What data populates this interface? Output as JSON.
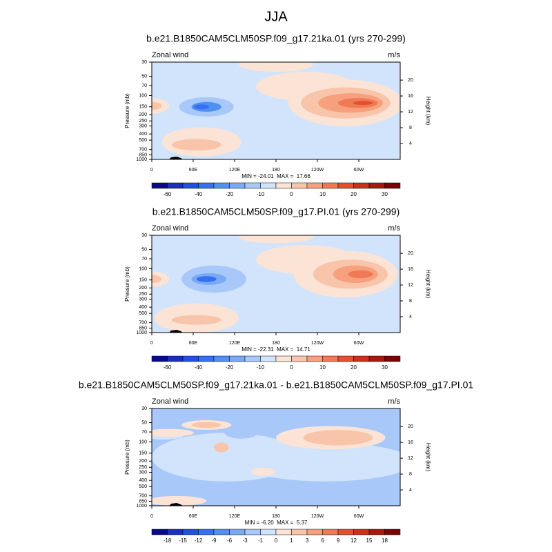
{
  "title": "JJA",
  "chart_data": [
    {
      "type": "contour",
      "subtitle": "b.e21.B1850CAM5CLM50SP.f09_g17.21ka.01 (yrs 270-299)",
      "left_label": "Zonal wind",
      "units": "m/s",
      "ylabel": "Pressure (mb)",
      "y2label": "Height (km)",
      "ylim": [
        1000,
        30
      ],
      "log_y": true,
      "yticks": [
        30,
        50,
        70,
        100,
        150,
        200,
        250,
        300,
        400,
        500,
        700,
        850,
        1000
      ],
      "y2ticks": [
        4,
        8,
        12,
        16,
        20
      ],
      "xlim": [
        0,
        360
      ],
      "xticks": [
        0,
        {
          "value": 60,
          "label": "60E"
        },
        {
          "value": 120,
          "label": "120E"
        },
        180,
        {
          "value": 240,
          "label": "120W"
        },
        {
          "value": 300,
          "label": "60W"
        }
      ],
      "stats": "MIN = -24.01  MAX =  17.66",
      "colorbar": {
        "levels": [
          -60,
          -40,
          -20,
          -10,
          0,
          10,
          20,
          30
        ],
        "colors": [
          "#0a0a8c",
          "#1a2fbf",
          "#2050e0",
          "#3470f0",
          "#5090f0",
          "#7aaaf5",
          "#a8c8fa",
          "#d2e4fb",
          "#fbe4d6",
          "#f9c5aa",
          "#f6a07e",
          "#f07a55",
          "#e4502e",
          "#cc3018",
          "#a8180c",
          "#7a0404"
        ]
      }
    },
    {
      "type": "contour",
      "subtitle": "b.e21.B1850CAM5CLM50SP.f09_g17.PI.01 (yrs 270-299)",
      "left_label": "Zonal wind",
      "units": "m/s",
      "ylabel": "Pressure (mb)",
      "y2label": "Height (km)",
      "ylim": [
        1000,
        30
      ],
      "log_y": true,
      "yticks": [
        30,
        50,
        70,
        100,
        150,
        200,
        250,
        300,
        400,
        500,
        700,
        850,
        1000
      ],
      "y2ticks": [
        4,
        8,
        12,
        16,
        20
      ],
      "xlim": [
        0,
        360
      ],
      "xticks": [
        0,
        {
          "value": 60,
          "label": "60E"
        },
        {
          "value": 120,
          "label": "120E"
        },
        180,
        {
          "value": 240,
          "label": "120W"
        },
        {
          "value": 300,
          "label": "60W"
        }
      ],
      "stats": "MIN = -22.31  MAX =  14.71",
      "colorbar": {
        "levels": [
          -60,
          -40,
          -20,
          -10,
          0,
          10,
          20,
          30
        ],
        "colors": [
          "#0a0a8c",
          "#1a2fbf",
          "#2050e0",
          "#3470f0",
          "#5090f0",
          "#7aaaf5",
          "#a8c8fa",
          "#d2e4fb",
          "#fbe4d6",
          "#f9c5aa",
          "#f6a07e",
          "#f07a55",
          "#e4502e",
          "#cc3018",
          "#a8180c",
          "#7a0404"
        ]
      }
    },
    {
      "type": "contour",
      "subtitle": "b.e21.B1850CAM5CLM50SP.f09_g17.21ka.01 - b.e21.B1850CAM5CLM50SP.f09_g17.PI.01",
      "left_label": "Zonal wind",
      "units": "m/s",
      "ylabel": "Pressure (mb)",
      "y2label": "Height (km)",
      "ylim": [
        1000,
        30
      ],
      "log_y": true,
      "yticks": [
        30,
        50,
        70,
        100,
        150,
        200,
        250,
        300,
        400,
        500,
        700,
        850,
        1000
      ],
      "y2ticks": [
        4,
        8,
        12,
        16,
        20
      ],
      "xlim": [
        0,
        360
      ],
      "xticks": [
        0,
        {
          "value": 60,
          "label": "60E"
        },
        {
          "value": 120,
          "label": "120E"
        },
        180,
        {
          "value": 240,
          "label": "120W"
        },
        {
          "value": 300,
          "label": "60W"
        }
      ],
      "stats": "MIN = -6.20  MAX =  5.37",
      "colorbar": {
        "levels": [
          -18,
          -15,
          -12,
          -9,
          -6,
          -3,
          -1,
          0,
          1,
          3,
          6,
          9,
          12,
          15,
          18
        ],
        "colors": [
          "#0a0a8c",
          "#1a2fbf",
          "#2050e0",
          "#3470f0",
          "#5090f0",
          "#7aaaf5",
          "#a8c8fa",
          "#d2e4fb",
          "#fbe4d6",
          "#f9c5aa",
          "#f6a07e",
          "#f07a55",
          "#e4502e",
          "#cc3018",
          "#a8180c",
          "#7a0404"
        ]
      }
    }
  ]
}
